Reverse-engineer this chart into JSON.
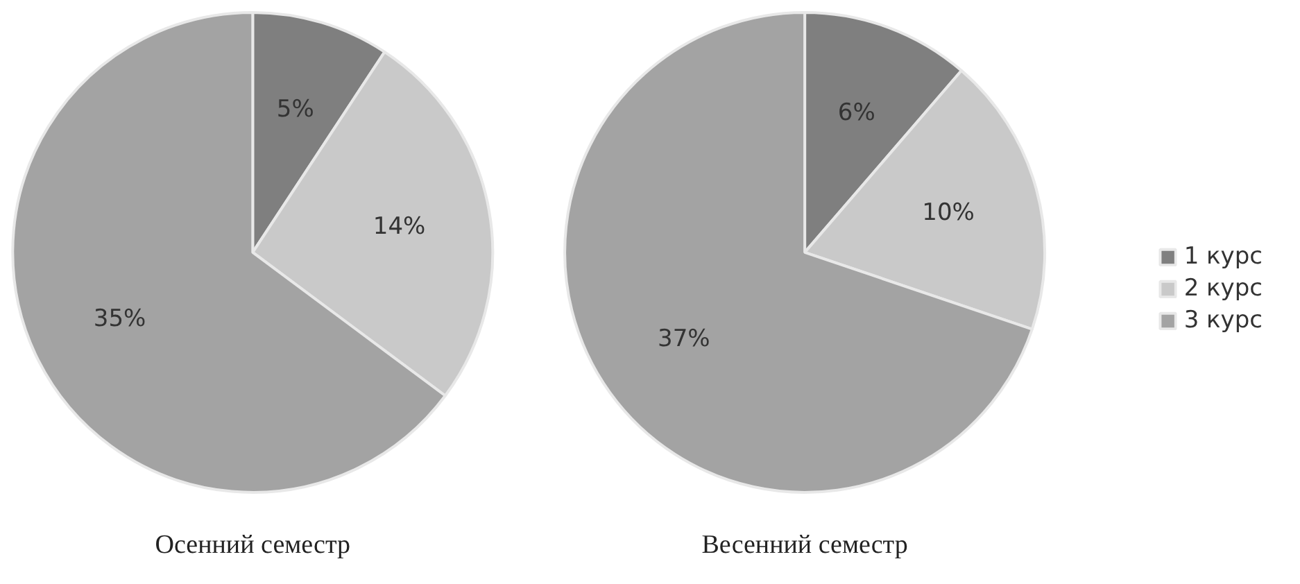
{
  "chart_data": [
    {
      "type": "pie",
      "title": "Осенний семестр",
      "categories": [
        "1 курс",
        "2 курс",
        "3 курс"
      ],
      "values": [
        5,
        14,
        35
      ],
      "value_labels": [
        "5%",
        "14%",
        "35%"
      ],
      "colors": [
        "#7f7f7f",
        "#c9c9c9",
        "#a3a3a3"
      ],
      "legend": "right"
    },
    {
      "type": "pie",
      "title": "Весенний семестр",
      "categories": [
        null,
        null,
        null
      ],
      "values": [
        6,
        10,
        37
      ],
      "value_labels": [
        "6%",
        "10%",
        "37%"
      ],
      "colors": [
        "#7f7f7f",
        "#c9c9c9",
        "#a3a3a3"
      ]
    }
  ]
}
